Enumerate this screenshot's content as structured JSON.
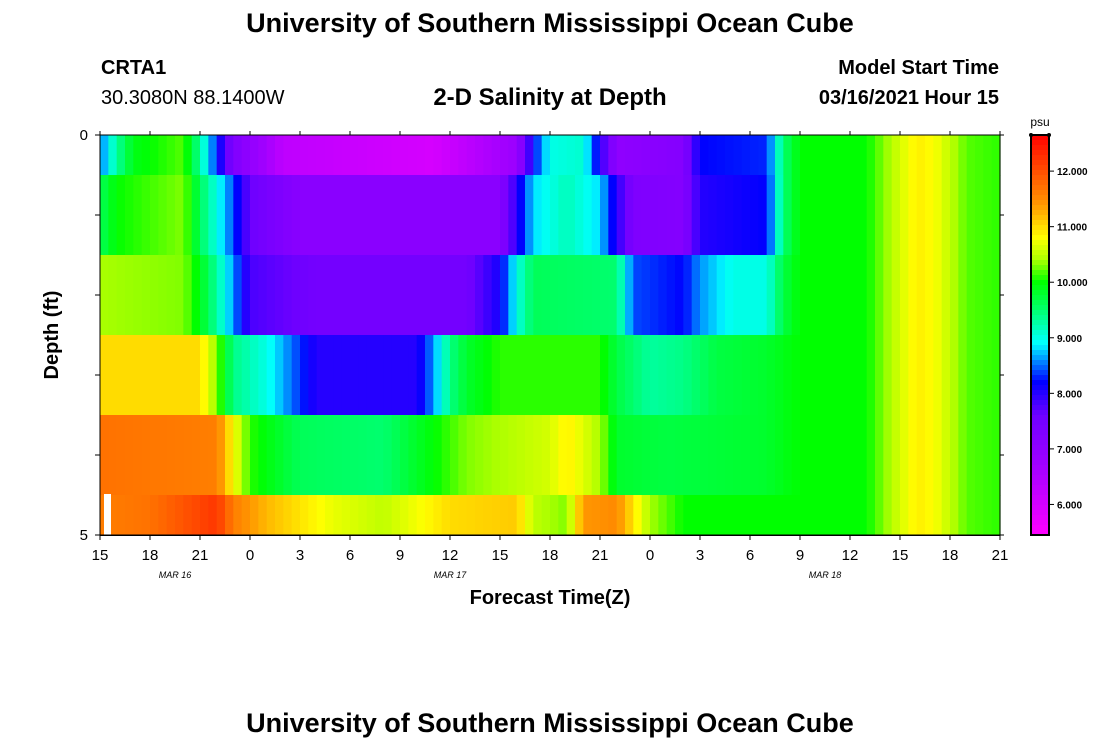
{
  "header": {
    "title": "University of Southern Mississippi Ocean Cube",
    "station_id": "CRTA1",
    "station_location": "30.3080N 88.1400W",
    "subtitle": "2-D Salinity at Depth",
    "model_start_label": "Model Start Time",
    "model_start_value": "03/16/2021 Hour 15"
  },
  "footer": {
    "title": "University of Southern Mississippi Ocean Cube"
  },
  "chart_data": {
    "type": "heatmap",
    "title": "2-D Salinity at Depth",
    "xlabel": "Forecast Time(Z)",
    "ylabel": "Depth (ft)",
    "x_ticks": [
      "15",
      "18",
      "21",
      "0",
      "3",
      "6",
      "9",
      "12",
      "15",
      "18",
      "21",
      "0",
      "3",
      "6",
      "9",
      "12",
      "15",
      "18",
      "21"
    ],
    "x_range_hours": [
      0,
      54
    ],
    "date_labels": [
      {
        "label": "MAR 16",
        "hour": 4.5
      },
      {
        "label": "MAR 17",
        "hour": 21
      },
      {
        "label": "MAR 18",
        "hour": 43.5
      }
    ],
    "y_ticks": [
      "0",
      "5"
    ],
    "y_range": [
      0,
      5
    ],
    "colorbar": {
      "unit": "psu",
      "min": 5.45,
      "max": 12.65,
      "ticks": [
        "6.000",
        "7.000",
        "8.000",
        "9.000",
        "10.000",
        "11.000",
        "12.000"
      ],
      "tick_values": [
        6,
        7,
        8,
        9,
        10,
        11,
        12
      ]
    },
    "layers": [
      {
        "depth_bin": [
          0.0,
          0.5
        ],
        "knots": [
          [
            0,
            8.5
          ],
          [
            1,
            9.3
          ],
          [
            2,
            9.9
          ],
          [
            5,
            10.2
          ],
          [
            6,
            9.3
          ],
          [
            7,
            8.3
          ],
          [
            8,
            7.3
          ],
          [
            11,
            6.3
          ],
          [
            20,
            6.0
          ],
          [
            25,
            6.8
          ],
          [
            26,
            8.2
          ],
          [
            27,
            9.0
          ],
          [
            29,
            9.1
          ],
          [
            30,
            8.0
          ],
          [
            31,
            7.0
          ],
          [
            35,
            7.2
          ],
          [
            36,
            8.2
          ],
          [
            40,
            8.3
          ],
          [
            41,
            9.5
          ],
          [
            42,
            10.0
          ],
          [
            54,
            10.0
          ]
        ]
      },
      {
        "depth_bin": [
          0.5,
          1.5
        ],
        "knots": [
          [
            0,
            9.6
          ],
          [
            1,
            10.0
          ],
          [
            5,
            10.3
          ],
          [
            6,
            9.6
          ],
          [
            7,
            9.0
          ],
          [
            8,
            8.4
          ],
          [
            9,
            7.6
          ],
          [
            12,
            7.1
          ],
          [
            24,
            7.1
          ],
          [
            25,
            8.0
          ],
          [
            26,
            8.8
          ],
          [
            28,
            9.2
          ],
          [
            30,
            8.8
          ],
          [
            31,
            8.0
          ],
          [
            32,
            7.3
          ],
          [
            35,
            7.2
          ],
          [
            36,
            8.0
          ],
          [
            40,
            8.2
          ],
          [
            41,
            9.5
          ],
          [
            42,
            10.0
          ],
          [
            54,
            10.0
          ]
        ]
      },
      {
        "depth_bin": [
          1.5,
          2.5
        ],
        "knots": [
          [
            0,
            10.4
          ],
          [
            5,
            10.3
          ],
          [
            6,
            9.9
          ],
          [
            7,
            9.3
          ],
          [
            8,
            8.6
          ],
          [
            9,
            7.8
          ],
          [
            13,
            7.5
          ],
          [
            22,
            7.5
          ],
          [
            24,
            8.1
          ],
          [
            25,
            9.0
          ],
          [
            26,
            9.6
          ],
          [
            31,
            9.5
          ],
          [
            32,
            8.4
          ],
          [
            35,
            8.2
          ],
          [
            36,
            8.6
          ],
          [
            38,
            9.0
          ],
          [
            40,
            9.0
          ],
          [
            41,
            9.7
          ],
          [
            42,
            10.0
          ],
          [
            54,
            10.0
          ]
        ]
      },
      {
        "depth_bin": [
          2.5,
          3.5
        ],
        "knots": [
          [
            0,
            11.0
          ],
          [
            6,
            11.0
          ],
          [
            7,
            10.3
          ],
          [
            8,
            9.4
          ],
          [
            10,
            9.0
          ],
          [
            13,
            8.0
          ],
          [
            19,
            8.0
          ],
          [
            20,
            8.6
          ],
          [
            21,
            9.4
          ],
          [
            22,
            9.8
          ],
          [
            24,
            10.1
          ],
          [
            30,
            10.1
          ],
          [
            31,
            9.7
          ],
          [
            33,
            9.3
          ],
          [
            35,
            9.4
          ],
          [
            37,
            9.7
          ],
          [
            40,
            9.8
          ],
          [
            42,
            10.0
          ],
          [
            54,
            10.0
          ]
        ]
      },
      {
        "depth_bin": [
          3.5,
          4.5
        ],
        "knots": [
          [
            0,
            11.7
          ],
          [
            7,
            11.6
          ],
          [
            8,
            10.8
          ],
          [
            9,
            10.1
          ],
          [
            12,
            9.6
          ],
          [
            17,
            9.5
          ],
          [
            22,
            10.3
          ],
          [
            27,
            10.6
          ],
          [
            28,
            10.9
          ],
          [
            30,
            10.4
          ],
          [
            31,
            9.8
          ],
          [
            34,
            9.7
          ],
          [
            40,
            9.8
          ],
          [
            42,
            10.0
          ],
          [
            54,
            10.0
          ]
        ]
      },
      {
        "depth_bin": [
          4.5,
          5.0
        ],
        "knots": [
          [
            0,
            11.6
          ],
          [
            3,
            11.7
          ],
          [
            7,
            12.2
          ],
          [
            8,
            11.6
          ],
          [
            10,
            11.2
          ],
          [
            14,
            10.7
          ],
          [
            17,
            10.5
          ],
          [
            21,
            11.0
          ],
          [
            25,
            11.1
          ],
          [
            26,
            10.5
          ],
          [
            28,
            10.3
          ],
          [
            29,
            11.4
          ],
          [
            31,
            11.5
          ],
          [
            33,
            10.4
          ],
          [
            35,
            10.0
          ],
          [
            40,
            10.0
          ],
          [
            42,
            10.0
          ],
          [
            54,
            10.0
          ]
        ]
      }
    ],
    "far_field_knots": [
      [
        42,
        10.0
      ],
      [
        46,
        10.0
      ],
      [
        47,
        10.3
      ],
      [
        48,
        10.6
      ],
      [
        49,
        10.9
      ],
      [
        50,
        10.8
      ],
      [
        51,
        10.5
      ],
      [
        52,
        10.2
      ],
      [
        54,
        10.1
      ]
    ]
  }
}
